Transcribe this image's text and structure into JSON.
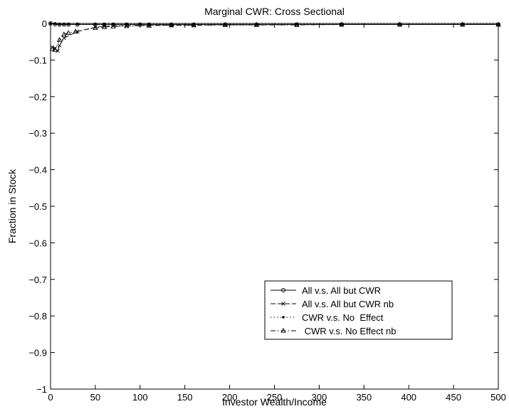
{
  "chart_data": {
    "type": "line",
    "title": "Marginal CWR: Cross Sectional",
    "xlabel": "Investor Wealth/Income",
    "ylabel": "Fraction in Stock",
    "xlim": [
      0,
      500
    ],
    "ylim": [
      -1,
      0
    ],
    "xticks": [
      0,
      50,
      100,
      150,
      200,
      250,
      300,
      350,
      400,
      450,
      500
    ],
    "yticks": [
      0,
      -0.1,
      -0.2,
      -0.3,
      -0.4,
      -0.5,
      -0.6,
      -0.7,
      -0.8,
      -0.9,
      -1
    ],
    "ytick_labels": [
      "0",
      "−0.1",
      "−0.2",
      "−0.3",
      "−0.4",
      "−0.5",
      "−0.6",
      "−0.7",
      "−0.8",
      "−0.9",
      "−1"
    ],
    "grid": false,
    "legend_position": "lower-right",
    "series": [
      {
        "name": "All v.s. All but CWR",
        "line": "solid",
        "marker": "circle",
        "x": [
          0,
          5,
          10,
          15,
          20,
          30,
          50,
          60,
          70,
          85,
          100,
          110,
          135,
          160,
          195,
          230,
          275,
          325,
          390,
          460,
          500
        ],
        "y": [
          0,
          -0.002,
          -0.003,
          -0.003,
          -0.003,
          -0.003,
          -0.003,
          -0.003,
          -0.003,
          -0.003,
          -0.003,
          -0.003,
          -0.003,
          -0.003,
          -0.003,
          -0.003,
          -0.003,
          -0.003,
          -0.003,
          -0.003,
          -0.003
        ]
      },
      {
        "name": "All v.s. All but CWR nb",
        "line": "dashed",
        "marker": "x",
        "x": [
          2,
          5,
          8,
          10,
          15,
          30,
          50,
          60,
          70,
          85,
          110,
          135,
          160,
          195,
          230,
          275,
          325,
          390,
          460,
          500
        ],
        "y": [
          -0.065,
          -0.068,
          -0.075,
          -0.06,
          -0.04,
          -0.022,
          -0.01,
          -0.008,
          -0.006,
          -0.006,
          -0.005,
          -0.005,
          -0.004,
          -0.004,
          -0.004,
          -0.003,
          -0.003,
          -0.003,
          -0.003,
          -0.003
        ]
      },
      {
        "name": "CWR v.s. No  Effect",
        "line": "dotted",
        "marker": "dot",
        "x": [
          0,
          5,
          10,
          15,
          20,
          30,
          50,
          60,
          70,
          85,
          100,
          110,
          135,
          160,
          195,
          230,
          275,
          325,
          390,
          460,
          500
        ],
        "y": [
          0,
          -0.001,
          -0.002,
          -0.002,
          -0.002,
          -0.002,
          -0.002,
          -0.002,
          -0.002,
          -0.002,
          -0.002,
          -0.002,
          -0.002,
          -0.002,
          -0.002,
          -0.002,
          -0.002,
          -0.002,
          -0.002,
          -0.002,
          -0.002
        ]
      },
      {
        "name": " CWR v.s. No Effect nb",
        "line": "dashdot",
        "marker": "triangle",
        "x": [
          2,
          5,
          10,
          15,
          20,
          28,
          50,
          60,
          70,
          85,
          110,
          135,
          160,
          195,
          230,
          275,
          325,
          390,
          460,
          500
        ],
        "y": [
          -0.07,
          -0.072,
          -0.045,
          -0.03,
          -0.026,
          -0.022,
          -0.012,
          -0.01,
          -0.008,
          -0.007,
          -0.006,
          -0.005,
          -0.005,
          -0.004,
          -0.004,
          -0.004,
          -0.003,
          -0.003,
          -0.003,
          -0.003
        ]
      }
    ]
  }
}
